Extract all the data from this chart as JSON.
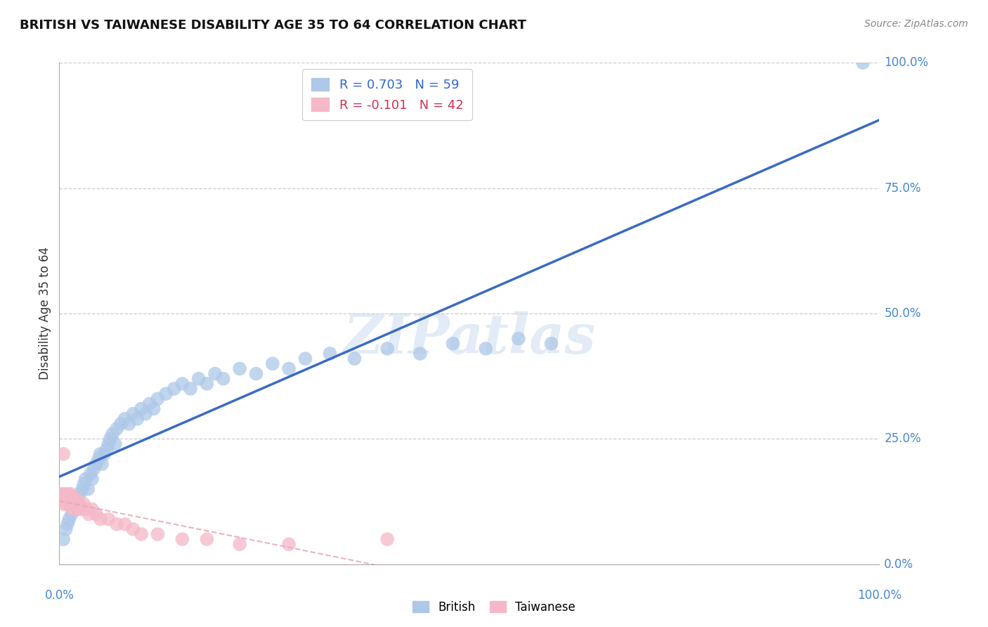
{
  "title": "BRITISH VS TAIWANESE DISABILITY AGE 35 TO 64 CORRELATION CHART",
  "source": "Source: ZipAtlas.com",
  "ylabel": "Disability Age 35 to 64",
  "british_R": 0.703,
  "british_N": 59,
  "taiwanese_R": -0.101,
  "taiwanese_N": 42,
  "british_color": "#adc8e8",
  "taiwanese_color": "#f5b8c8",
  "british_line_color": "#3a6bbf",
  "taiwanese_line_color": "#e8aabb",
  "watermark": "ZIPatlas",
  "british_x": [
    0.005,
    0.008,
    0.01,
    0.012,
    0.015,
    0.018,
    0.02,
    0.022,
    0.025,
    0.028,
    0.03,
    0.032,
    0.035,
    0.038,
    0.04,
    0.042,
    0.045,
    0.048,
    0.05,
    0.052,
    0.055,
    0.058,
    0.06,
    0.062,
    0.065,
    0.068,
    0.07,
    0.075,
    0.08,
    0.085,
    0.09,
    0.095,
    0.1,
    0.105,
    0.11,
    0.115,
    0.12,
    0.13,
    0.14,
    0.15,
    0.16,
    0.17,
    0.18,
    0.19,
    0.2,
    0.22,
    0.24,
    0.26,
    0.28,
    0.3,
    0.33,
    0.36,
    0.4,
    0.44,
    0.48,
    0.52,
    0.56,
    0.6,
    0.98
  ],
  "british_y": [
    0.05,
    0.07,
    0.08,
    0.09,
    0.1,
    0.11,
    0.12,
    0.13,
    0.14,
    0.15,
    0.16,
    0.17,
    0.15,
    0.18,
    0.17,
    0.19,
    0.2,
    0.21,
    0.22,
    0.2,
    0.22,
    0.23,
    0.24,
    0.25,
    0.26,
    0.24,
    0.27,
    0.28,
    0.29,
    0.28,
    0.3,
    0.29,
    0.31,
    0.3,
    0.32,
    0.31,
    0.33,
    0.34,
    0.35,
    0.36,
    0.35,
    0.37,
    0.36,
    0.38,
    0.37,
    0.39,
    0.38,
    0.4,
    0.39,
    0.41,
    0.42,
    0.41,
    0.43,
    0.42,
    0.44,
    0.43,
    0.45,
    0.44,
    1.0
  ],
  "taiwanese_x": [
    0.002,
    0.003,
    0.004,
    0.005,
    0.006,
    0.007,
    0.008,
    0.009,
    0.01,
    0.011,
    0.012,
    0.013,
    0.014,
    0.015,
    0.016,
    0.017,
    0.018,
    0.019,
    0.02,
    0.021,
    0.022,
    0.023,
    0.025,
    0.027,
    0.03,
    0.033,
    0.036,
    0.04,
    0.045,
    0.05,
    0.06,
    0.07,
    0.08,
    0.09,
    0.1,
    0.12,
    0.15,
    0.18,
    0.22,
    0.28,
    0.4,
    0.005
  ],
  "taiwanese_y": [
    0.13,
    0.14,
    0.13,
    0.14,
    0.12,
    0.13,
    0.14,
    0.12,
    0.13,
    0.14,
    0.13,
    0.12,
    0.14,
    0.13,
    0.12,
    0.11,
    0.13,
    0.12,
    0.11,
    0.13,
    0.12,
    0.11,
    0.12,
    0.11,
    0.12,
    0.11,
    0.1,
    0.11,
    0.1,
    0.09,
    0.09,
    0.08,
    0.08,
    0.07,
    0.06,
    0.06,
    0.05,
    0.05,
    0.04,
    0.04,
    0.05,
    0.22
  ],
  "ytick_values": [
    0.0,
    0.25,
    0.5,
    0.75,
    1.0
  ],
  "ytick_labels": [
    "0.0%",
    "25.0%",
    "50.0%",
    "75.0%",
    "100.0%"
  ],
  "xlim": [
    0.0,
    1.0
  ],
  "ylim": [
    0.0,
    1.0
  ]
}
